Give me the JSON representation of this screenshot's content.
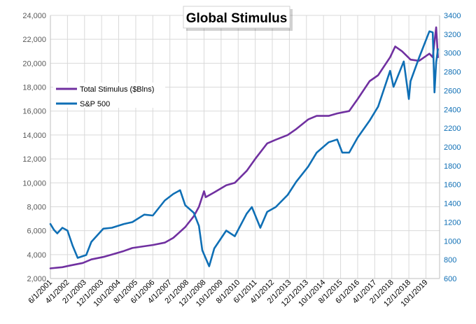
{
  "chart_data": {
    "type": "line",
    "title": "Global Stimulus",
    "grid": true,
    "legend_position": "top-left",
    "colors": {
      "stimulus": "#7030a0",
      "sp500": "#0f6fb5",
      "left_axis_text": "#595959",
      "right_axis_text": "#0f6fb5",
      "gridline": "#d9d9d9"
    },
    "x_labels": [
      "6/1/2001",
      "4/1/2002",
      "2/1/2003",
      "12/1/2003",
      "10/1/2004",
      "8/1/2005",
      "6/1/2006",
      "4/1/2007",
      "2/1/2008",
      "12/1/2008",
      "10/1/2009",
      "8/1/2010",
      "6/1/2011",
      "4/1/2012",
      "2/1/2013",
      "12/1/2013",
      "10/1/2014",
      "8/1/2015",
      "6/1/2016",
      "4/1/2017",
      "2/1/2018",
      "12/1/2018",
      "10/1/2019"
    ],
    "y_left": {
      "min": 2000,
      "max": 24000,
      "step": 2000,
      "ticks": [
        "2,000",
        "4,000",
        "6,000",
        "8,000",
        "10,000",
        "12,000",
        "14,000",
        "16,000",
        "18,000",
        "20,000",
        "22,000",
        "24,000"
      ]
    },
    "y_right": {
      "min": 600,
      "max": 3400,
      "step": 200,
      "ticks": [
        "600",
        "800",
        "1000",
        "1200",
        "1400",
        "1600",
        "1800",
        "2000",
        "2200",
        "2400",
        "2600",
        "2800",
        "3000",
        "3200",
        "3400"
      ]
    },
    "series": [
      {
        "name": "Total Stimulus ($Blns)",
        "axis": "left",
        "points": [
          [
            "2001-06",
            2850
          ],
          [
            "2002-01",
            2950
          ],
          [
            "2002-06",
            3100
          ],
          [
            "2003-01",
            3300
          ],
          [
            "2003-06",
            3600
          ],
          [
            "2004-01",
            3800
          ],
          [
            "2004-06",
            4000
          ],
          [
            "2005-01",
            4300
          ],
          [
            "2005-06",
            4550
          ],
          [
            "2006-01",
            4700
          ],
          [
            "2006-06",
            4800
          ],
          [
            "2007-01",
            5000
          ],
          [
            "2007-06",
            5400
          ],
          [
            "2008-01",
            6300
          ],
          [
            "2008-06",
            7200
          ],
          [
            "2008-09",
            8000
          ],
          [
            "2008-12",
            9300
          ],
          [
            "2009-01",
            8800
          ],
          [
            "2009-06",
            9200
          ],
          [
            "2010-01",
            9800
          ],
          [
            "2010-06",
            10000
          ],
          [
            "2011-01",
            11000
          ],
          [
            "2011-06",
            12000
          ],
          [
            "2012-01",
            13300
          ],
          [
            "2012-06",
            13600
          ],
          [
            "2013-01",
            14000
          ],
          [
            "2013-06",
            14500
          ],
          [
            "2014-01",
            15300
          ],
          [
            "2014-06",
            15600
          ],
          [
            "2015-01",
            15600
          ],
          [
            "2015-06",
            15800
          ],
          [
            "2016-01",
            16000
          ],
          [
            "2016-06",
            17000
          ],
          [
            "2017-01",
            18500
          ],
          [
            "2017-06",
            19000
          ],
          [
            "2018-01",
            20500
          ],
          [
            "2018-04",
            21400
          ],
          [
            "2018-08",
            21000
          ],
          [
            "2019-01",
            20300
          ],
          [
            "2019-06",
            20200
          ],
          [
            "2019-12",
            20800
          ],
          [
            "2020-02",
            20500
          ],
          [
            "2020-04",
            23000
          ],
          [
            "2020-05",
            20500
          ]
        ]
      },
      {
        "name": "S&P 500",
        "axis": "right",
        "points": [
          [
            "2001-06",
            1180
          ],
          [
            "2001-08",
            1120
          ],
          [
            "2001-10",
            1080
          ],
          [
            "2002-01",
            1140
          ],
          [
            "2002-04",
            1110
          ],
          [
            "2002-07",
            950
          ],
          [
            "2002-10",
            820
          ],
          [
            "2003-03",
            850
          ],
          [
            "2003-06",
            990
          ],
          [
            "2004-01",
            1130
          ],
          [
            "2004-06",
            1140
          ],
          [
            "2005-01",
            1180
          ],
          [
            "2005-06",
            1200
          ],
          [
            "2006-01",
            1280
          ],
          [
            "2006-06",
            1270
          ],
          [
            "2007-01",
            1430
          ],
          [
            "2007-06",
            1500
          ],
          [
            "2007-10",
            1540
          ],
          [
            "2008-01",
            1380
          ],
          [
            "2008-06",
            1300
          ],
          [
            "2008-09",
            1160
          ],
          [
            "2008-11",
            900
          ],
          [
            "2009-03",
            730
          ],
          [
            "2009-06",
            920
          ],
          [
            "2010-01",
            1110
          ],
          [
            "2010-06",
            1050
          ],
          [
            "2011-01",
            1290
          ],
          [
            "2011-04",
            1360
          ],
          [
            "2011-09",
            1140
          ],
          [
            "2012-01",
            1310
          ],
          [
            "2012-06",
            1360
          ],
          [
            "2013-01",
            1490
          ],
          [
            "2013-06",
            1630
          ],
          [
            "2014-01",
            1790
          ],
          [
            "2014-06",
            1940
          ],
          [
            "2015-01",
            2050
          ],
          [
            "2015-06",
            2080
          ],
          [
            "2015-09",
            1940
          ],
          [
            "2016-01",
            1940
          ],
          [
            "2016-06",
            2100
          ],
          [
            "2017-01",
            2280
          ],
          [
            "2017-06",
            2430
          ],
          [
            "2018-01",
            2810
          ],
          [
            "2018-03",
            2640
          ],
          [
            "2018-09",
            2910
          ],
          [
            "2018-12",
            2510
          ],
          [
            "2019-01",
            2700
          ],
          [
            "2019-06",
            2950
          ],
          [
            "2019-12",
            3230
          ],
          [
            "2020-02",
            3220
          ],
          [
            "2020-03",
            2580
          ],
          [
            "2020-04",
            2900
          ],
          [
            "2020-05",
            3040
          ]
        ]
      }
    ]
  }
}
